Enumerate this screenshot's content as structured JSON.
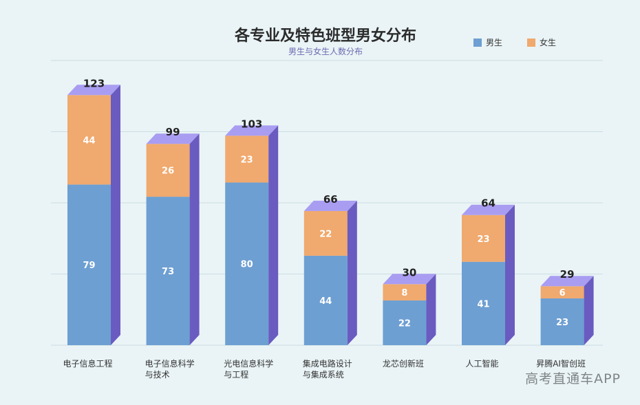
{
  "chart_data": {
    "type": "bar",
    "title": "各专业及特色班型男女分布",
    "subtitle": "男生与女生人数分布",
    "categories": [
      "电子信息工程",
      "电子信息科学\n与技术",
      "光电信息科学\n与工程",
      "集成电路设计\n与集成系统",
      "龙芯创新班",
      "人工智能",
      "昇腾AI智创班"
    ],
    "series": [
      {
        "name": "男生",
        "values": [
          79,
          73,
          80,
          44,
          22,
          41,
          23
        ],
        "color": "#6d9fd2"
      },
      {
        "name": "女生",
        "values": [
          44,
          26,
          23,
          22,
          8,
          23,
          6
        ],
        "color": "#f0a96e"
      }
    ],
    "totals": [
      123,
      99,
      103,
      66,
      30,
      64,
      29
    ],
    "ylim": [
      0,
      140
    ],
    "grid": true,
    "legend_position": "top-right",
    "colors": {
      "side": "#6a5bc0",
      "top": "#a99df2",
      "grid": "#c9dde3",
      "background": "#eaf4f6"
    }
  },
  "watermark": "高考直通车APP"
}
